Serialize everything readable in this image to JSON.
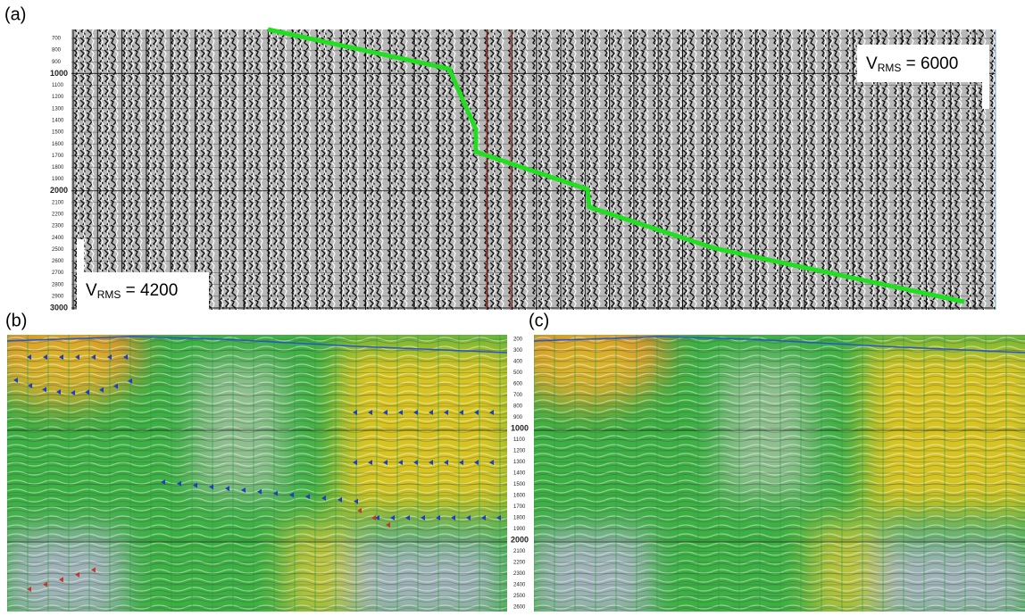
{
  "panel_a": {
    "label": "(a)",
    "axis_labels": [
      "700",
      "800",
      "900",
      "1000",
      "1100",
      "1200",
      "1300",
      "1400",
      "1500",
      "1600",
      "1700",
      "1800",
      "1900",
      "2000",
      "2100",
      "2200",
      "2300",
      "2400",
      "2500",
      "2600",
      "2700",
      "2800",
      "2900",
      "3000"
    ],
    "annotation_right": {
      "main": "V",
      "sub": "RMS",
      "rest": " = 6000"
    },
    "annotation_left": {
      "main": "V",
      "sub": "RMS",
      "rest": " = 4200"
    }
  },
  "panel_b": {
    "label": "(b)"
  },
  "panel_c": {
    "label": "(c)"
  },
  "shared_axis": {
    "labels": [
      "200",
      "300",
      "400",
      "500",
      "600",
      "700",
      "800",
      "900",
      "1000",
      "1100",
      "1200",
      "1300",
      "1400",
      "1500",
      "1600",
      "1700",
      "1800",
      "1900",
      "2000",
      "2100",
      "2200",
      "2300",
      "2400",
      "2500",
      "2600"
    ]
  }
}
